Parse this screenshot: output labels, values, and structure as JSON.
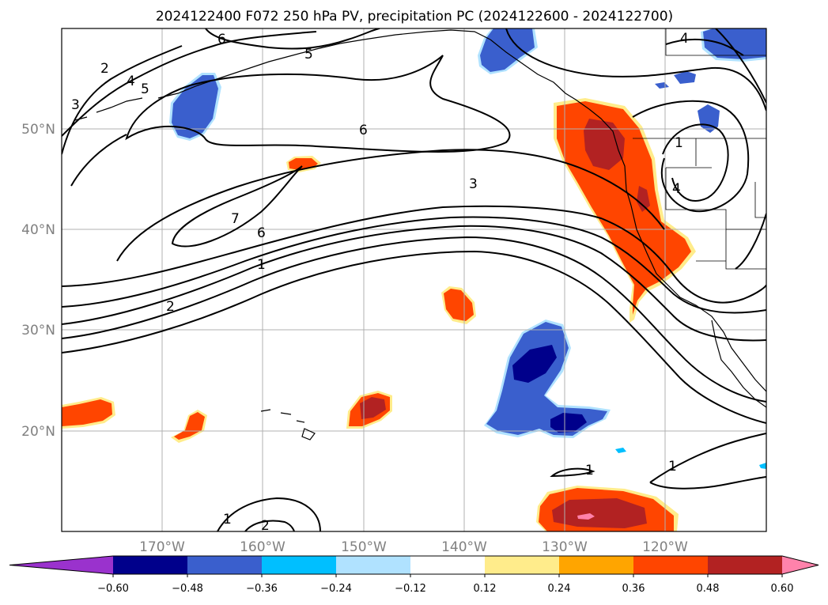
{
  "title": "2024122400 F072 250 hPa PV, precipitation PC (2024122600 - 2024122700)",
  "lat_labels": [
    "50°N",
    "40°N",
    "30°N",
    "20°N"
  ],
  "lon_labels": [
    "170°W",
    "160°W",
    "150°W",
    "140°W",
    "130°W",
    "120°W"
  ],
  "colorbar": {
    "labels": [
      "−0.60",
      "−0.48",
      "−0.36",
      "−0.24",
      "−0.12",
      "0.12",
      "0.24",
      "0.36",
      "0.48",
      "0.60"
    ],
    "colors": [
      "#9a32cd",
      "#00008b",
      "#3a5fcd",
      "#00bfff",
      "#b0e2ff",
      "#ffffff",
      "#ffec8b",
      "#ffa500",
      "#ff4500",
      "#b22222",
      "#ff82ab"
    ]
  },
  "contour_labels": [
    "6",
    "2",
    "4",
    "5",
    "3",
    "5",
    "6",
    "4",
    "3",
    "1",
    "4",
    "7",
    "1",
    "2",
    "6",
    "1",
    "1",
    "2",
    "1"
  ],
  "fill_colors": {
    "orange": "#ff4500",
    "red": "#b22222",
    "pink": "#ff82ab",
    "yellow": "#ffec8b",
    "navy": "#00008b",
    "blue": "#3a5fcd",
    "cyan": "#00bfff",
    "lightblue": "#b0e2ff"
  }
}
